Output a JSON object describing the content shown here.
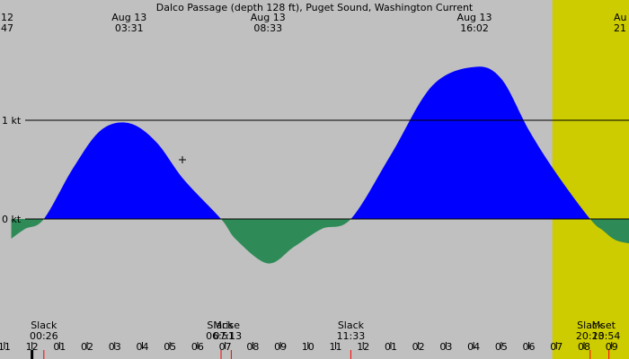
{
  "chart_data": {
    "type": "area",
    "title": "Dalco Passage (depth 128 ft), Puget Sound, Washington Current",
    "y_unit": "kt",
    "y_ticks": [
      {
        "value": 1,
        "label": "1 kt"
      },
      {
        "value": 0,
        "label": "0 kt"
      }
    ],
    "x_unit": "hours since Aug 12 12:00",
    "x_range": [
      -0.75,
      22.0
    ],
    "y_range": [
      -1.0,
      2.2
    ],
    "daylight_band": {
      "start": 18.85,
      "end": 32.22
    },
    "colors": {
      "flood": "#0000ff",
      "ebb": "#2e8b57",
      "day": "#cccc00",
      "night": "#c0c0c0",
      "tick_red": "#ff0000"
    },
    "series": [
      {
        "x": [
          -0.75,
          -0.25,
          0.43,
          1.5,
          2.5,
          3.52,
          4.5,
          5.5,
          6.85,
          7.4,
          8.55,
          9.5,
          10.5,
          11.55,
          13.0,
          14.5,
          16.03,
          17.0,
          18.0,
          19.0,
          20.22,
          20.7,
          21.2,
          22.0
        ],
        "y": [
          -0.2,
          -0.1,
          0.0,
          0.52,
          0.9,
          0.97,
          0.78,
          0.4,
          0.0,
          -0.21,
          -0.45,
          -0.28,
          -0.1,
          0.0,
          0.65,
          1.35,
          1.54,
          1.42,
          0.9,
          0.46,
          0.0,
          -0.12,
          -0.22,
          -0.26
        ]
      }
    ],
    "events": [
      {
        "kind": "peak",
        "day": "Aug 13",
        "time": "03:31",
        "x": 3.52,
        "value": 0.97
      },
      {
        "kind": "peak",
        "day": "Aug 13",
        "time": "08:33",
        "x": 8.55,
        "value": -0.45
      },
      {
        "kind": "peak",
        "day": "Aug 13",
        "time": "16:02",
        "x": 16.03,
        "value": 1.54
      }
    ],
    "clipped_top_labels": [
      {
        "line1": "12",
        "line2": "47",
        "align": "left"
      },
      {
        "line1": "Au",
        "line2": "21",
        "align": "right"
      }
    ],
    "bottom_events": [
      {
        "label": "Slack",
        "time": "00:26",
        "x": 0.43
      },
      {
        "label": "Slack",
        "time": "06:51",
        "x": 6.85
      },
      {
        "label": "Mrise",
        "time": "07:13",
        "x": 7.22
      },
      {
        "label": "Slack",
        "time": "11:33",
        "x": 11.55
      },
      {
        "label": "Slack",
        "time": "20:13",
        "x": 20.22
      },
      {
        "label": "Mset",
        "time": "20:54",
        "x": 20.9
      }
    ],
    "hour_ticks": [
      {
        "label": "11",
        "x": -1
      },
      {
        "label": "12",
        "x": 0
      },
      {
        "label": "01",
        "x": 1
      },
      {
        "label": "02",
        "x": 2
      },
      {
        "label": "03",
        "x": 3
      },
      {
        "label": "04",
        "x": 4
      },
      {
        "label": "05",
        "x": 5
      },
      {
        "label": "06",
        "x": 6
      },
      {
        "label": "07",
        "x": 7
      },
      {
        "label": "08",
        "x": 8
      },
      {
        "label": "09",
        "x": 9
      },
      {
        "label": "10",
        "x": 10
      },
      {
        "label": "11",
        "x": 11
      },
      {
        "label": "12",
        "x": 12
      },
      {
        "label": "01",
        "x": 13
      },
      {
        "label": "02",
        "x": 14
      },
      {
        "label": "03",
        "x": 15
      },
      {
        "label": "04",
        "x": 16
      },
      {
        "label": "05",
        "x": 17
      },
      {
        "label": "06",
        "x": 18
      },
      {
        "label": "07",
        "x": 19
      },
      {
        "label": "08",
        "x": 20
      },
      {
        "label": "09",
        "x": 21
      }
    ],
    "red_tick_x": [
      0.43,
      6.85,
      7.22,
      11.55,
      20.22,
      20.9
    ],
    "grid": false
  }
}
